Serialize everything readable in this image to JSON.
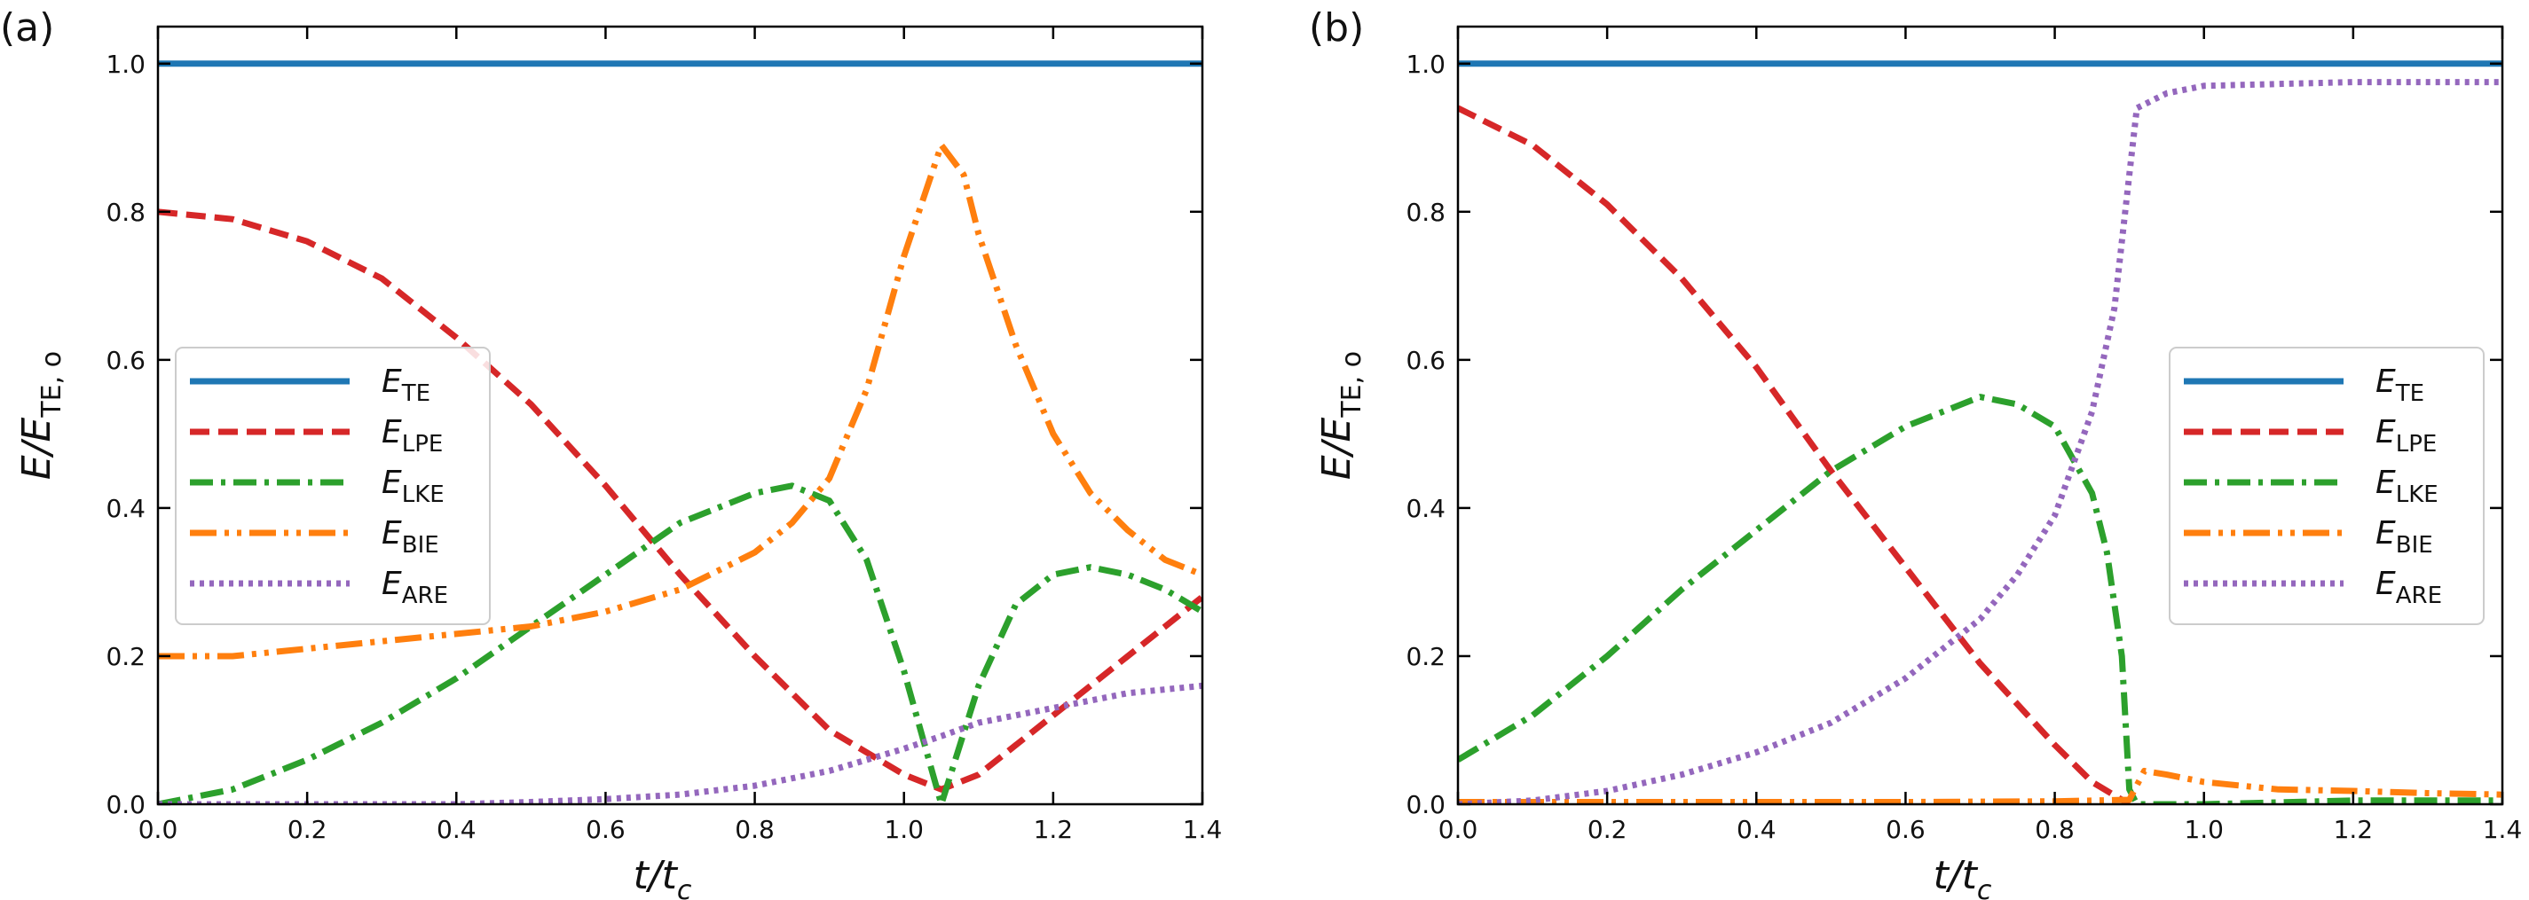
{
  "chart_data": [
    {
      "type": "line",
      "panel_label": "(a)",
      "xlabel": {
        "main": "t/t",
        "sub": "c"
      },
      "ylabel": {
        "main": "E/E",
        "sub": "TE, o"
      },
      "xlim": [
        0.0,
        1.4
      ],
      "ylim": [
        0.0,
        1.05
      ],
      "xticks": [
        "0.0",
        "0.2",
        "0.4",
        "0.6",
        "0.8",
        "1.0",
        "1.2",
        "1.4"
      ],
      "yticks": [
        "0.0",
        "0.2",
        "0.4",
        "0.6",
        "0.8",
        "1.0"
      ],
      "legend_position": "center-left",
      "series": [
        {
          "name": "E_TE",
          "label": "E",
          "sub": "TE",
          "color": "#1f77b4",
          "dash": "solid",
          "x": [
            0.0,
            1.4
          ],
          "y": [
            1.0,
            1.0
          ]
        },
        {
          "name": "E_LPE",
          "label": "E",
          "sub": "LPE",
          "color": "#d62728",
          "dash": "dashed",
          "x": [
            0.0,
            0.1,
            0.2,
            0.3,
            0.4,
            0.5,
            0.6,
            0.7,
            0.8,
            0.9,
            1.0,
            1.05,
            1.1,
            1.2,
            1.3,
            1.4
          ],
          "y": [
            0.8,
            0.79,
            0.76,
            0.71,
            0.63,
            0.54,
            0.43,
            0.31,
            0.2,
            0.1,
            0.04,
            0.02,
            0.04,
            0.12,
            0.2,
            0.28
          ]
        },
        {
          "name": "E_LKE",
          "label": "E",
          "sub": "LKE",
          "color": "#2ca02c",
          "dash": "dashdot",
          "x": [
            0.0,
            0.1,
            0.2,
            0.3,
            0.4,
            0.5,
            0.6,
            0.7,
            0.8,
            0.85,
            0.9,
            0.95,
            1.0,
            1.05,
            1.1,
            1.15,
            1.2,
            1.25,
            1.3,
            1.35,
            1.4
          ],
          "y": [
            0.0,
            0.02,
            0.06,
            0.11,
            0.17,
            0.24,
            0.31,
            0.38,
            0.42,
            0.43,
            0.41,
            0.33,
            0.18,
            0.0,
            0.16,
            0.27,
            0.31,
            0.32,
            0.31,
            0.29,
            0.26
          ]
        },
        {
          "name": "E_BIE",
          "label": "E",
          "sub": "BIE",
          "color": "#ff7f0e",
          "dash": "dashdotdot",
          "x": [
            0.0,
            0.1,
            0.2,
            0.3,
            0.4,
            0.5,
            0.6,
            0.7,
            0.8,
            0.85,
            0.9,
            0.95,
            1.0,
            1.05,
            1.08,
            1.1,
            1.15,
            1.2,
            1.25,
            1.3,
            1.35,
            1.4
          ],
          "y": [
            0.2,
            0.2,
            0.21,
            0.22,
            0.23,
            0.24,
            0.26,
            0.29,
            0.34,
            0.38,
            0.44,
            0.56,
            0.74,
            0.89,
            0.85,
            0.77,
            0.62,
            0.5,
            0.42,
            0.37,
            0.33,
            0.31
          ]
        },
        {
          "name": "E_ARE",
          "label": "E",
          "sub": "ARE",
          "color": "#9467bd",
          "dash": "dotted",
          "x": [
            0.0,
            0.2,
            0.4,
            0.5,
            0.6,
            0.7,
            0.8,
            0.9,
            1.0,
            1.05,
            1.1,
            1.2,
            1.3,
            1.4
          ],
          "y": [
            0.0,
            0.0,
            0.0,
            0.003,
            0.007,
            0.013,
            0.025,
            0.045,
            0.075,
            0.092,
            0.11,
            0.13,
            0.15,
            0.16
          ]
        }
      ]
    },
    {
      "type": "line",
      "panel_label": "(b)",
      "xlabel": {
        "main": "t/t",
        "sub": "c"
      },
      "ylabel": {
        "main": "E/E",
        "sub": "TE, o"
      },
      "xlim": [
        0.0,
        1.4
      ],
      "ylim": [
        0.0,
        1.05
      ],
      "xticks": [
        "0.0",
        "0.2",
        "0.4",
        "0.6",
        "0.8",
        "1.0",
        "1.2",
        "1.4"
      ],
      "yticks": [
        "0.0",
        "0.2",
        "0.4",
        "0.6",
        "0.8",
        "1.0"
      ],
      "legend_position": "center-right",
      "series": [
        {
          "name": "E_TE",
          "label": "E",
          "sub": "TE",
          "color": "#1f77b4",
          "dash": "solid",
          "x": [
            0.0,
            1.4
          ],
          "y": [
            1.0,
            1.0
          ]
        },
        {
          "name": "E_LPE",
          "label": "E",
          "sub": "LPE",
          "color": "#d62728",
          "dash": "dashed",
          "x": [
            0.0,
            0.1,
            0.2,
            0.3,
            0.4,
            0.5,
            0.6,
            0.7,
            0.8,
            0.85,
            0.9
          ],
          "y": [
            0.94,
            0.89,
            0.81,
            0.71,
            0.59,
            0.45,
            0.32,
            0.19,
            0.08,
            0.03,
            0.0
          ]
        },
        {
          "name": "E_LKE",
          "label": "E",
          "sub": "LKE",
          "color": "#2ca02c",
          "dash": "dashdot",
          "x": [
            0.0,
            0.1,
            0.2,
            0.3,
            0.4,
            0.5,
            0.6,
            0.7,
            0.75,
            0.8,
            0.85,
            0.87,
            0.89,
            0.9,
            0.91,
            1.0,
            1.2,
            1.4
          ],
          "y": [
            0.06,
            0.12,
            0.2,
            0.29,
            0.37,
            0.45,
            0.51,
            0.55,
            0.54,
            0.51,
            0.42,
            0.34,
            0.2,
            0.02,
            0.0,
            0.0,
            0.005,
            0.005
          ]
        },
        {
          "name": "E_BIE",
          "label": "E",
          "sub": "BIE",
          "color": "#ff7f0e",
          "dash": "dashdotdot",
          "x": [
            0.0,
            0.2,
            0.4,
            0.6,
            0.8,
            0.9,
            0.92,
            0.95,
            1.0,
            1.1,
            1.2,
            1.3,
            1.4
          ],
          "y": [
            0.003,
            0.003,
            0.003,
            0.003,
            0.004,
            0.006,
            0.045,
            0.04,
            0.03,
            0.02,
            0.018,
            0.015,
            0.013
          ]
        },
        {
          "name": "E_ARE",
          "label": "E",
          "sub": "ARE",
          "color": "#9467bd",
          "dash": "dotted",
          "x": [
            0.0,
            0.1,
            0.2,
            0.3,
            0.4,
            0.5,
            0.6,
            0.7,
            0.75,
            0.8,
            0.85,
            0.88,
            0.9,
            0.91,
            0.95,
            1.0,
            1.2,
            1.4
          ],
          "y": [
            0.0,
            0.005,
            0.018,
            0.04,
            0.07,
            0.11,
            0.17,
            0.25,
            0.31,
            0.39,
            0.53,
            0.67,
            0.85,
            0.94,
            0.96,
            0.97,
            0.975,
            0.975
          ]
        }
      ]
    }
  ]
}
